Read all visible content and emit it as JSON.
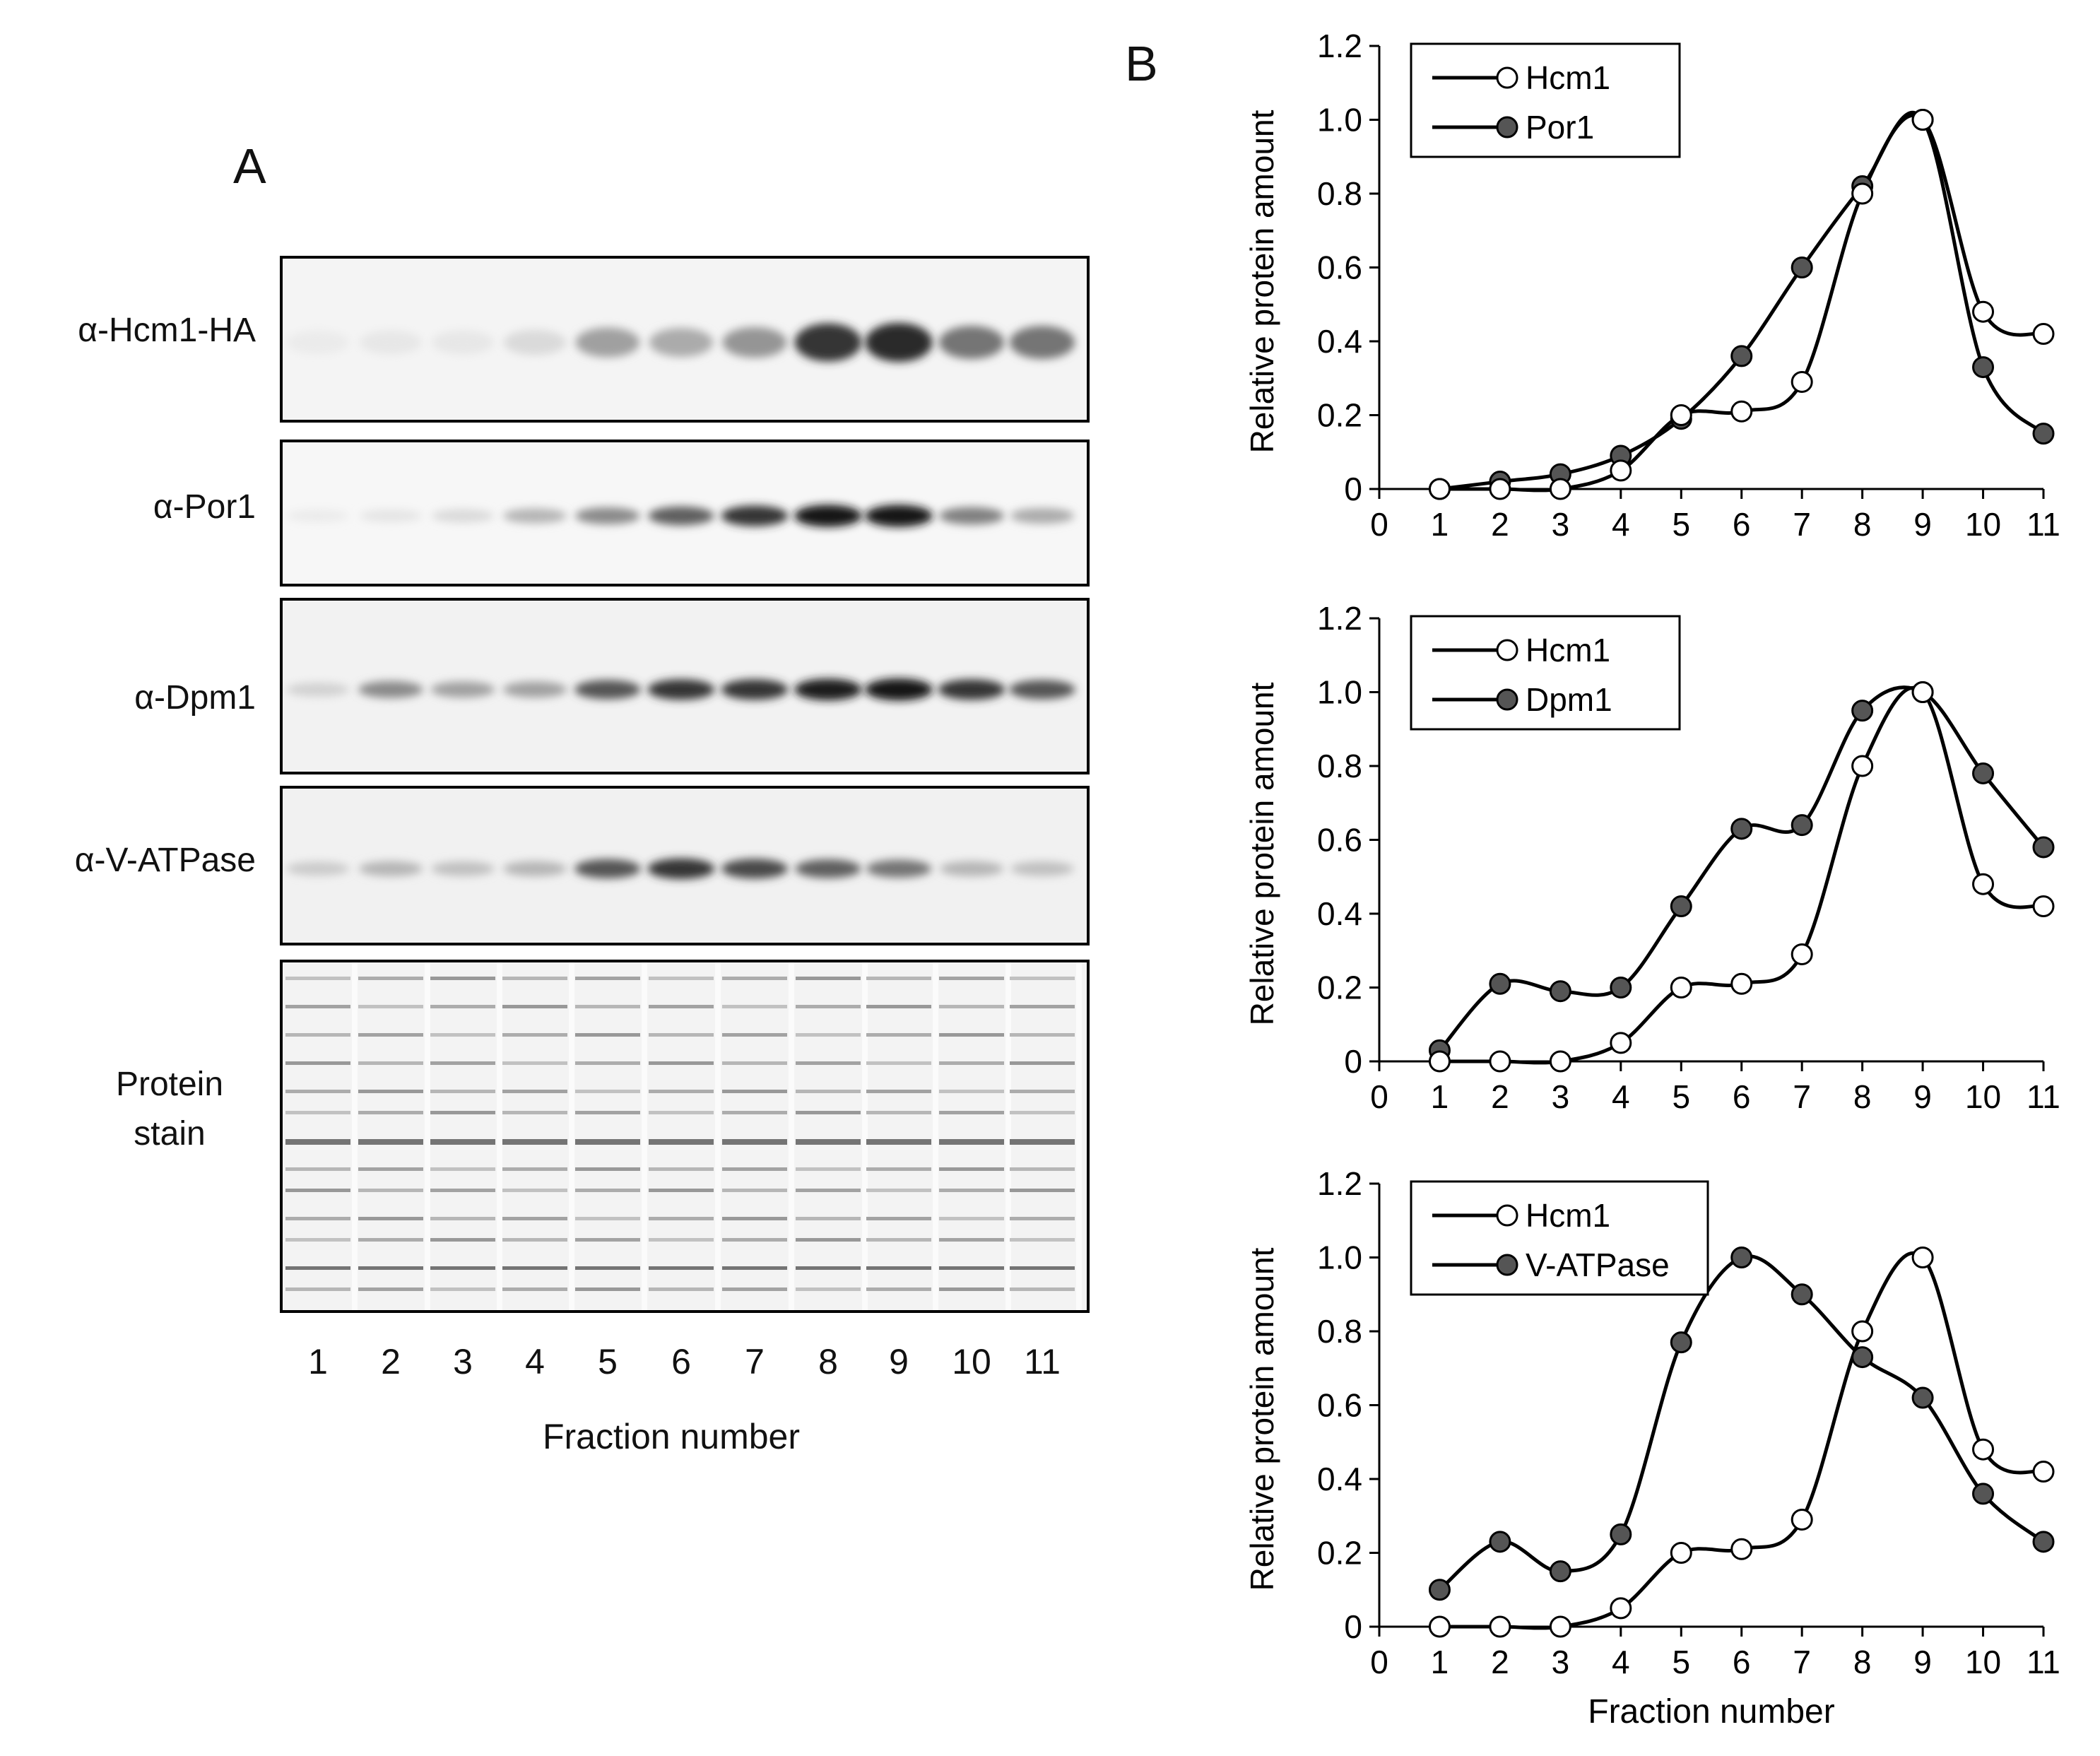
{
  "panel_a": {
    "letter": "A",
    "blots": [
      {
        "label": "α-Hcm1-HA",
        "intensity": [
          0.0,
          0.02,
          0.02,
          0.08,
          0.35,
          0.3,
          0.4,
          0.85,
          0.9,
          0.55,
          0.55
        ]
      },
      {
        "label": "α-Por1",
        "intensity": [
          0.0,
          0.03,
          0.08,
          0.25,
          0.45,
          0.65,
          0.85,
          1.0,
          1.0,
          0.5,
          0.3
        ]
      },
      {
        "label": "α-Dpm1",
        "intensity": [
          0.12,
          0.45,
          0.35,
          0.35,
          0.7,
          0.85,
          0.85,
          0.95,
          1.0,
          0.85,
          0.7
        ]
      },
      {
        "label": "α-V-ATPase",
        "intensity": [
          0.15,
          0.25,
          0.2,
          0.25,
          0.7,
          0.85,
          0.75,
          0.65,
          0.55,
          0.25,
          0.2
        ]
      }
    ],
    "stain_label_line1": "Protein",
    "stain_label_line2": "stain",
    "lanes": [
      "1",
      "2",
      "3",
      "4",
      "5",
      "6",
      "7",
      "8",
      "9",
      "10",
      "11"
    ],
    "xlabel": "Fraction number"
  },
  "panel_b": {
    "letter": "B"
  },
  "chart_data": [
    {
      "type": "line",
      "x": [
        1,
        2,
        3,
        4,
        5,
        6,
        7,
        8,
        9,
        10,
        11
      ],
      "series": [
        {
          "name": "Hcm1",
          "marker": "open",
          "values": [
            0,
            0,
            0,
            0.05,
            0.2,
            0.21,
            0.29,
            0.8,
            1.0,
            0.48,
            0.42
          ]
        },
        {
          "name": "Por1",
          "marker": "filled",
          "values": [
            0,
            0.02,
            0.04,
            0.09,
            0.19,
            0.36,
            0.6,
            0.82,
            1.0,
            0.33,
            0.15
          ]
        }
      ],
      "ylabel": "Relative protein amount",
      "xlabel": "",
      "xlim": [
        0,
        11
      ],
      "ylim": [
        0,
        1.2
      ],
      "xticks": [
        "0",
        "1",
        "2",
        "3",
        "4",
        "5",
        "6",
        "7",
        "8",
        "9",
        "10",
        "11"
      ],
      "yticks": [
        "0",
        "0.2",
        "0.4",
        "0.6",
        "0.8",
        "1.0",
        "1.2"
      ],
      "legend": "top-left"
    },
    {
      "type": "line",
      "x": [
        1,
        2,
        3,
        4,
        5,
        6,
        7,
        8,
        9,
        10,
        11
      ],
      "series": [
        {
          "name": "Hcm1",
          "marker": "open",
          "values": [
            0,
            0,
            0,
            0.05,
            0.2,
            0.21,
            0.29,
            0.8,
            1.0,
            0.48,
            0.42
          ]
        },
        {
          "name": "Dpm1",
          "marker": "filled",
          "values": [
            0.03,
            0.21,
            0.19,
            0.2,
            0.42,
            0.63,
            0.64,
            0.95,
            1.0,
            0.78,
            0.58
          ]
        }
      ],
      "ylabel": "Relative protein amount",
      "xlabel": "",
      "xlim": [
        0,
        11
      ],
      "ylim": [
        0,
        1.2
      ],
      "xticks": [
        "0",
        "1",
        "2",
        "3",
        "4",
        "5",
        "6",
        "7",
        "8",
        "9",
        "10",
        "11"
      ],
      "yticks": [
        "0",
        "0.2",
        "0.4",
        "0.6",
        "0.8",
        "1.0",
        "1.2"
      ],
      "legend": "top-left"
    },
    {
      "type": "line",
      "x": [
        1,
        2,
        3,
        4,
        5,
        6,
        7,
        8,
        9,
        10,
        11
      ],
      "series": [
        {
          "name": "Hcm1",
          "marker": "open",
          "values": [
            0,
            0,
            0,
            0.05,
            0.2,
            0.21,
            0.29,
            0.8,
            1.0,
            0.48,
            0.42
          ]
        },
        {
          "name": "V-ATPase",
          "marker": "filled",
          "values": [
            0.1,
            0.23,
            0.15,
            0.25,
            0.77,
            1.0,
            0.9,
            0.73,
            0.62,
            0.36,
            0.23
          ]
        }
      ],
      "ylabel": "Relative protein amount",
      "xlabel": "Fraction number",
      "xlim": [
        0,
        11
      ],
      "ylim": [
        0,
        1.2
      ],
      "xticks": [
        "0",
        "1",
        "2",
        "3",
        "4",
        "5",
        "6",
        "7",
        "8",
        "9",
        "10",
        "11"
      ],
      "yticks": [
        "0",
        "0.2",
        "0.4",
        "0.6",
        "0.8",
        "1.0",
        "1.2"
      ],
      "legend": "top-left"
    }
  ]
}
